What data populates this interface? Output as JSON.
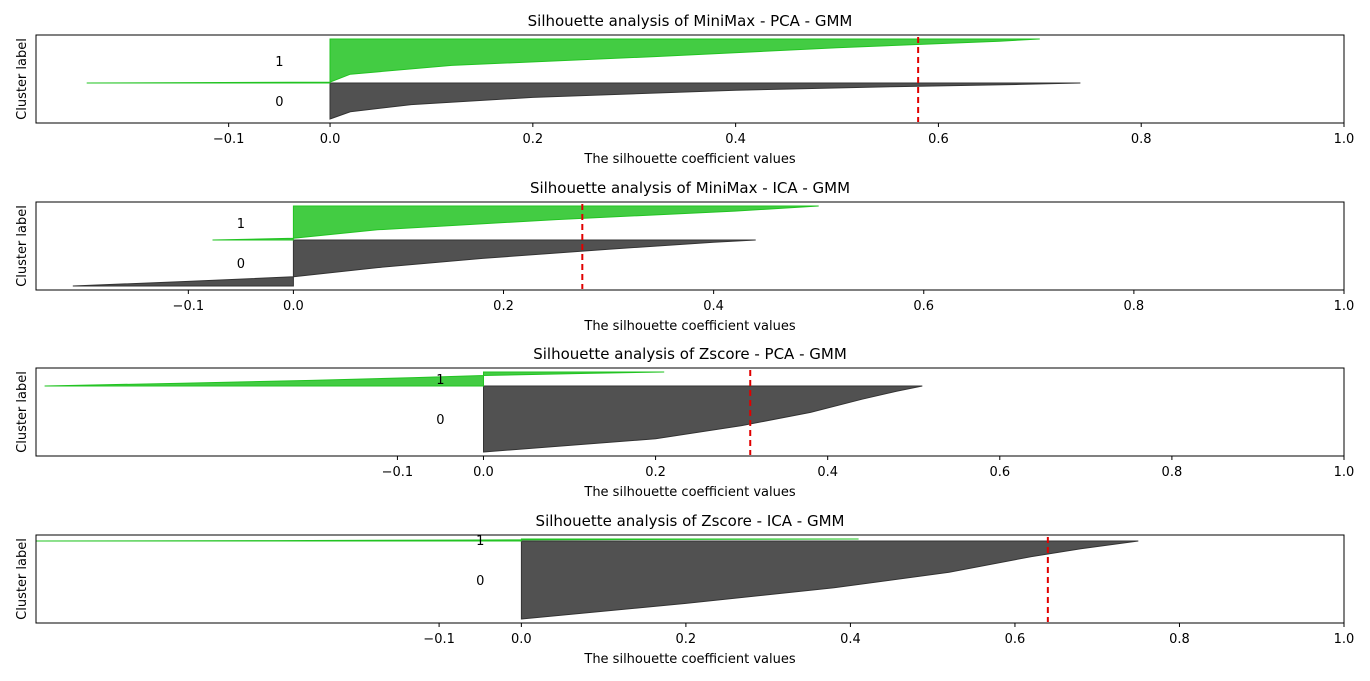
{
  "chart_data": [
    {
      "type": "area",
      "title": "Silhouette analysis of MiniMax - PCA - GMM",
      "xlabel": "The silhouette coefficient values",
      "ylabel": "Cluster label",
      "xlim": [
        -0.29,
        1.0
      ],
      "xticks": [
        "−0.1",
        "0.0",
        "0.2",
        "0.4",
        "0.6",
        "0.8",
        "1.0"
      ],
      "xtick_values": [
        -0.1,
        0.0,
        0.2,
        0.4,
        0.6,
        0.8,
        1.0
      ],
      "average_silhouette": 0.58,
      "grid": false,
      "clusters": [
        {
          "label": "0",
          "color": "#333333",
          "profile": [
            [
              0,
              0.0
            ],
            [
              0.2,
              0.02
            ],
            [
              0.4,
              0.08
            ],
            [
              0.6,
              0.2
            ],
            [
              0.8,
              0.4
            ],
            [
              0.9,
              0.56
            ],
            [
              0.96,
              0.68
            ],
            [
              1,
              0.74
            ]
          ],
          "min_value": 0.0
        },
        {
          "label": "1",
          "color": "#22c322",
          "profile": [
            [
              0,
              -0.24
            ],
            [
              0.02,
              0.0
            ],
            [
              0.2,
              0.02
            ],
            [
              0.4,
              0.12
            ],
            [
              0.6,
              0.32
            ],
            [
              0.8,
              0.5
            ],
            [
              0.95,
              0.66
            ],
            [
              1,
              0.7
            ]
          ],
          "min_value": -0.24
        }
      ]
    },
    {
      "type": "area",
      "title": "Silhouette analysis of MiniMax - ICA - GMM",
      "xlabel": "The silhouette coefficient values",
      "ylabel": "Cluster label",
      "xlim": [
        -0.245,
        1.0
      ],
      "xticks": [
        "−0.1",
        "0.0",
        "0.2",
        "0.4",
        "0.6",
        "0.8",
        "1.0"
      ],
      "xtick_values": [
        -0.1,
        0.0,
        0.2,
        0.4,
        0.6,
        0.8,
        1.0
      ],
      "average_silhouette": 0.275,
      "grid": false,
      "clusters": [
        {
          "label": "0",
          "color": "#333333",
          "profile": [
            [
              0,
              -0.21
            ],
            [
              0.1,
              -0.1
            ],
            [
              0.2,
              0.0
            ],
            [
              0.4,
              0.08
            ],
            [
              0.6,
              0.18
            ],
            [
              0.8,
              0.3
            ],
            [
              0.95,
              0.4
            ],
            [
              1,
              0.44
            ]
          ],
          "min_value": -0.21
        },
        {
          "label": "1",
          "color": "#22c322",
          "profile": [
            [
              0,
              -0.077
            ],
            [
              0.05,
              0.0
            ],
            [
              0.3,
              0.08
            ],
            [
              0.6,
              0.25
            ],
            [
              0.85,
              0.42
            ],
            [
              1,
              0.5
            ]
          ],
          "min_value": -0.077
        }
      ]
    },
    {
      "type": "area",
      "title": "Silhouette analysis of Zscore - PCA - GMM",
      "xlabel": "The silhouette coefficient values",
      "ylabel": "Cluster label",
      "xlim": [
        -0.52,
        1.0
      ],
      "xticks": [
        "−0.1",
        "0.0",
        "0.2",
        "0.4",
        "0.6",
        "0.8",
        "1.0"
      ],
      "xtick_values": [
        -0.1,
        0.0,
        0.2,
        0.4,
        0.6,
        0.8,
        1.0
      ],
      "average_silhouette": 0.31,
      "grid": false,
      "clusters": [
        {
          "label": "0",
          "color": "#333333",
          "profile": [
            [
              0,
              0.0
            ],
            [
              0.2,
              0.2
            ],
            [
              0.4,
              0.3
            ],
            [
              0.6,
              0.38
            ],
            [
              0.8,
              0.44
            ],
            [
              0.92,
              0.48
            ],
            [
              1,
              0.51
            ]
          ],
          "min_value": 0.0
        },
        {
          "label": "1",
          "color": "#22c322",
          "profile": [
            [
              0,
              -0.51
            ],
            [
              0.2,
              -0.35
            ],
            [
              0.4,
              -0.2
            ],
            [
              0.6,
              -0.08
            ],
            [
              0.75,
              0.0
            ],
            [
              0.9,
              0.12
            ],
            [
              1,
              0.21
            ]
          ],
          "min_value": -0.51
        }
      ]
    },
    {
      "type": "area",
      "title": "Silhouette analysis of Zscore - ICA - GMM",
      "xlabel": "The silhouette coefficient values",
      "ylabel": "Cluster label",
      "xlim": [
        -0.59,
        1.0
      ],
      "xticks": [
        "−0.1",
        "0.0",
        "0.2",
        "0.4",
        "0.6",
        "0.8",
        "1.0"
      ],
      "xtick_values": [
        -0.1,
        0.0,
        0.2,
        0.4,
        0.6,
        0.8,
        1.0
      ],
      "average_silhouette": 0.64,
      "grid": false,
      "clusters": [
        {
          "label": "0",
          "color": "#333333",
          "profile": [
            [
              0,
              0.0
            ],
            [
              0.2,
              0.2
            ],
            [
              0.4,
              0.38
            ],
            [
              0.6,
              0.52
            ],
            [
              0.8,
              0.62
            ],
            [
              0.9,
              0.68
            ],
            [
              1,
              0.75
            ]
          ],
          "min_value": 0.0
        },
        {
          "label": "1",
          "color": "#22c322",
          "profile": [
            [
              0,
              -0.59
            ],
            [
              0.2,
              -0.3
            ],
            [
              0.5,
              -0.05
            ],
            [
              0.7,
              0.1
            ],
            [
              1,
              0.41
            ]
          ],
          "min_value": -0.59
        }
      ]
    }
  ]
}
